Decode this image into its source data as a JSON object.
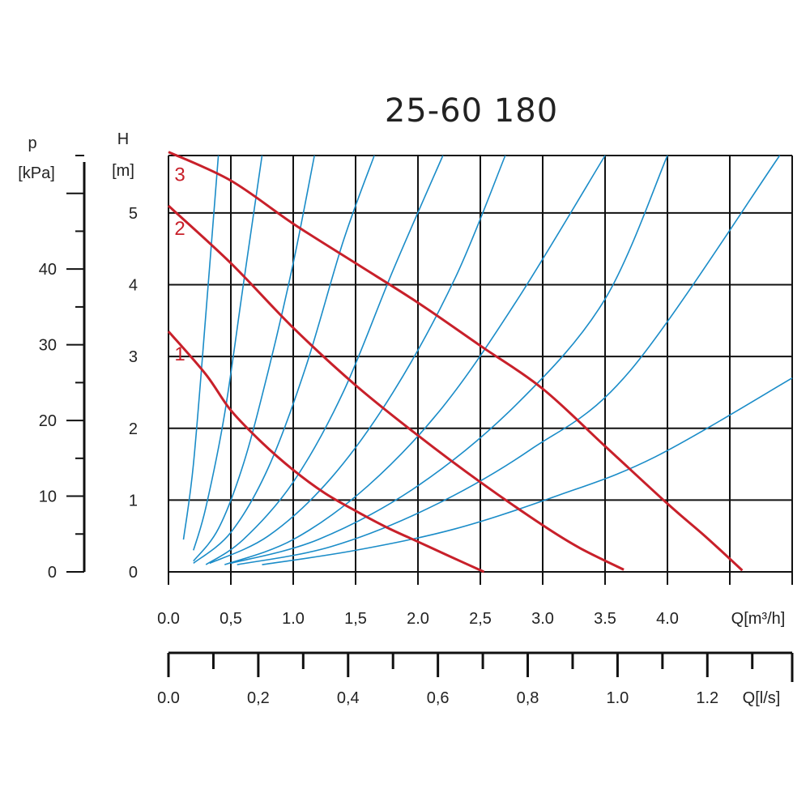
{
  "chart_data": {
    "type": "line",
    "title": "25-60 180",
    "left_axis": {
      "label_line1": "p",
      "label_line2": "[kPa]",
      "ticks": [
        "0",
        "10",
        "20",
        "30",
        "40"
      ],
      "values": [
        0,
        10,
        20,
        30,
        40
      ],
      "range": [
        0,
        55
      ]
    },
    "y_axis": {
      "label_line1": "H",
      "label_line2": "[m]",
      "ticks": [
        "0",
        "1",
        "2",
        "3",
        "4",
        "5"
      ],
      "values": [
        0,
        1,
        2,
        3,
        4,
        5
      ],
      "range": [
        0,
        5.8
      ]
    },
    "x_axis": {
      "unit_label": "Q[m³/h]",
      "ticks": [
        "0.0",
        "0,5",
        "1.0",
        "1,5",
        "2.0",
        "2,5",
        "3.0",
        "3.5",
        "4.0"
      ],
      "values": [
        0,
        0.5,
        1.0,
        1.5,
        2.0,
        2.5,
        3.0,
        3.5,
        4.0
      ],
      "range": [
        0,
        5.0
      ]
    },
    "x2_axis": {
      "unit_label": "Q[l/s]",
      "ticks": [
        "0.0",
        "0,2",
        "0,4",
        "0,6",
        "0,8",
        "1.0",
        "1.2"
      ],
      "values": [
        0,
        0.2,
        0.4,
        0.6,
        0.8,
        1.0,
        1.2
      ]
    },
    "grid": true,
    "colors": {
      "pump_curve": "#c8202a",
      "system_curve": "#1a8cc8",
      "grid": "#111111",
      "text": "#222222"
    },
    "series": [
      {
        "name": "1",
        "x": [
          0,
          0.3,
          0.5,
          0.75,
          1.0,
          1.25,
          1.5,
          1.75,
          2.0,
          2.25,
          2.53
        ],
        "y": [
          3.35,
          2.75,
          2.25,
          1.8,
          1.42,
          1.1,
          0.85,
          0.62,
          0.42,
          0.22,
          0.0
        ]
      },
      {
        "name": "2",
        "x": [
          0,
          0.5,
          1.0,
          1.5,
          2.0,
          2.5,
          3.0,
          3.3,
          3.65
        ],
        "y": [
          5.1,
          4.3,
          3.4,
          2.6,
          1.9,
          1.25,
          0.65,
          0.33,
          0.03
        ]
      },
      {
        "name": "3",
        "x": [
          0,
          0.5,
          1.0,
          1.5,
          2.0,
          2.5,
          3.0,
          3.5,
          4.0,
          4.3,
          4.6
        ],
        "y": [
          5.85,
          5.45,
          4.85,
          4.3,
          3.75,
          3.15,
          2.55,
          1.75,
          0.95,
          0.5,
          0.02
        ]
      }
    ],
    "system_curves": [
      {
        "x": [
          0.12,
          0.2,
          0.3,
          0.4
        ],
        "y": [
          0.45,
          1.5,
          3.6,
          5.8
        ]
      },
      {
        "x": [
          0.2,
          0.3,
          0.45,
          0.6,
          0.75
        ],
        "y": [
          0.3,
          0.9,
          2.2,
          4.0,
          5.8
        ]
      },
      {
        "x": [
          0.2,
          0.4,
          0.6,
          0.8,
          1.0,
          1.17
        ],
        "y": [
          0.15,
          0.6,
          1.5,
          2.8,
          4.3,
          5.8
        ]
      },
      {
        "x": [
          0.2,
          0.5,
          0.8,
          1.1,
          1.4,
          1.65
        ],
        "y": [
          0.12,
          0.55,
          1.45,
          2.85,
          4.6,
          5.8
        ]
      },
      {
        "x": [
          0.3,
          0.6,
          1.0,
          1.4,
          1.8,
          2.2
        ],
        "y": [
          0.1,
          0.45,
          1.25,
          2.5,
          4.2,
          5.8
        ]
      },
      {
        "x": [
          0.33,
          0.8,
          1.3,
          1.8,
          2.3,
          2.7
        ],
        "y": [
          0.12,
          0.5,
          1.3,
          2.5,
          4.1,
          5.8
        ]
      },
      {
        "x": [
          0.45,
          1.0,
          1.6,
          2.2,
          2.8,
          3.5
        ],
        "y": [
          0.1,
          0.45,
          1.2,
          2.3,
          3.8,
          5.8
        ]
      },
      {
        "x": [
          0.5,
          1.2,
          2.0,
          2.8,
          3.5,
          4.0
        ],
        "y": [
          0.12,
          0.45,
          1.2,
          2.35,
          3.8,
          5.8
        ]
      },
      {
        "x": [
          0.55,
          1.3,
          2.1,
          2.9,
          3.7,
          4.9
        ],
        "y": [
          0.1,
          0.35,
          0.9,
          1.7,
          2.8,
          5.8
        ]
      },
      {
        "x": [
          0.75,
          1.5,
          2.3,
          3.1,
          3.9,
          5.0
        ],
        "y": [
          0.1,
          0.3,
          0.6,
          1.05,
          1.6,
          2.7
        ]
      }
    ]
  }
}
